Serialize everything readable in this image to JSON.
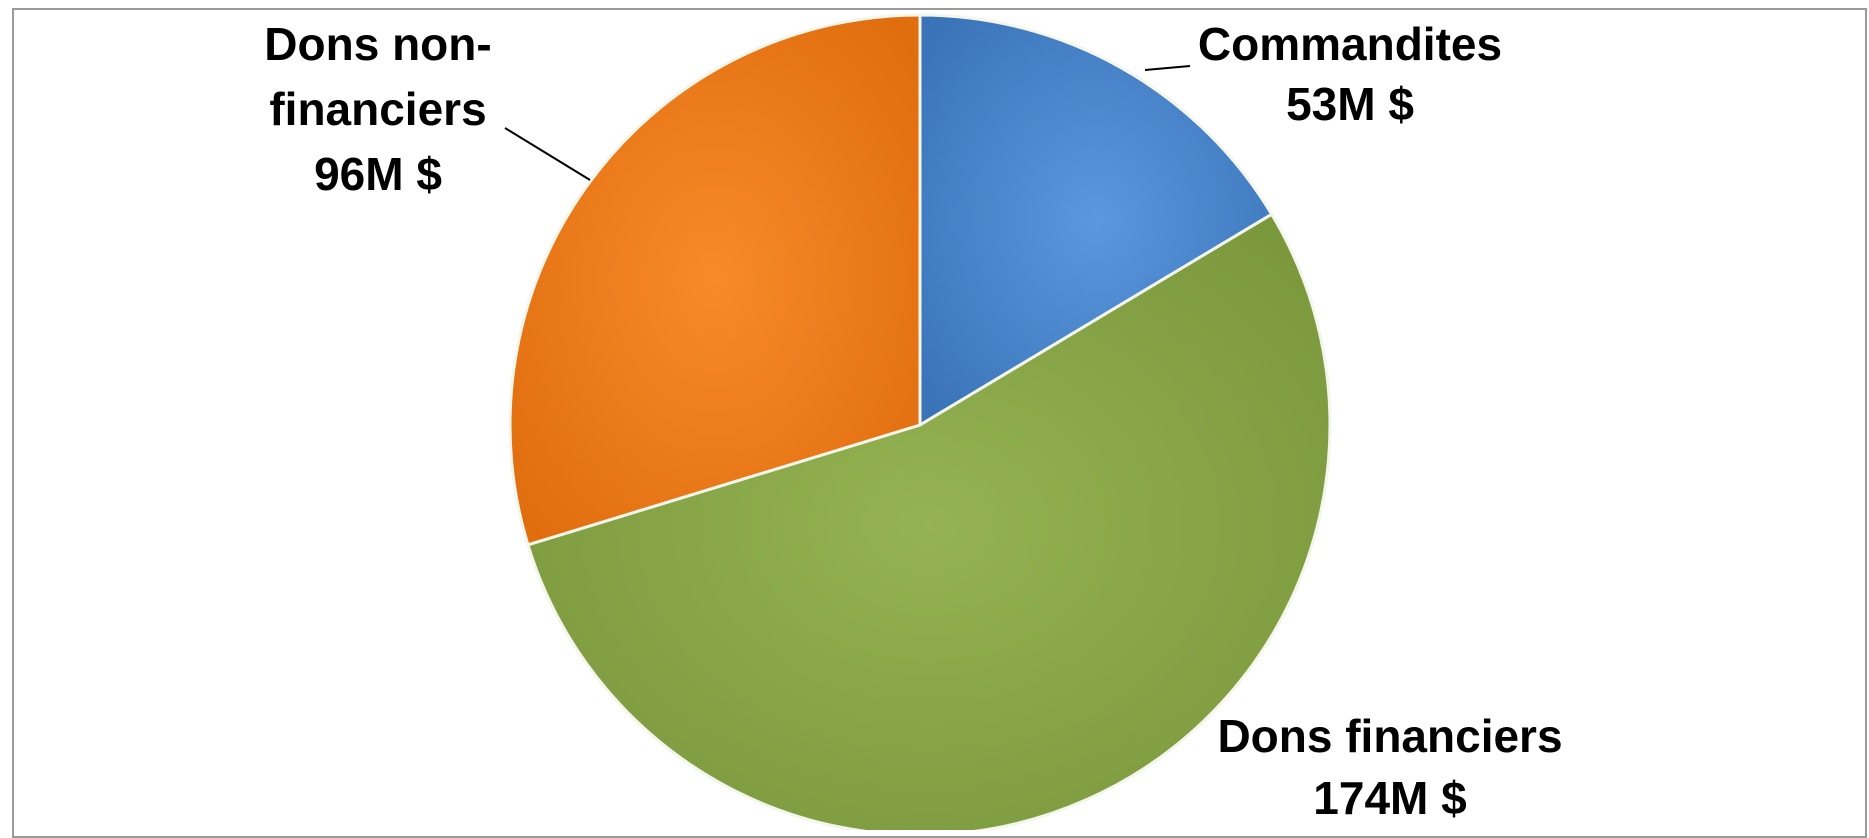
{
  "chart_data": {
    "type": "pie",
    "title": "",
    "unit": "M $",
    "categories": [
      "Commandites",
      "Dons financiers",
      "Dons non-financiers"
    ],
    "values": [
      53,
      174,
      96
    ],
    "value_labels": [
      "53M $",
      "174M $",
      "96M $"
    ],
    "label_lines": {
      "Commandites": [
        "Commandites",
        "53M $"
      ],
      "Dons financiers": [
        "Dons financiers",
        "174M $"
      ],
      "Dons non-financiers": [
        "Dons non-",
        "financiers",
        "96M $"
      ]
    },
    "colors": [
      "#4682c9",
      "#86a445",
      "#f07a18"
    ],
    "start_angle": "12 o'clock",
    "direction": "clockwise",
    "legend": "none",
    "data_labels": "outside with leader lines"
  }
}
